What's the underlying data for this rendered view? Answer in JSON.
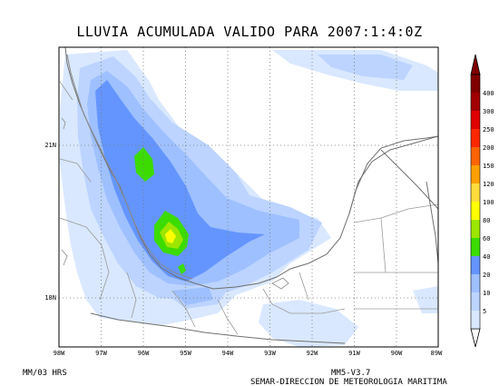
{
  "title": "LLUVIA ACUMULADA VALIDO PARA 2007:1:4:0Z",
  "x_ticks": [
    "98W",
    "97W",
    "96W",
    "95W",
    "94W",
    "93W",
    "92W",
    "91W",
    "90W",
    "89W"
  ],
  "y_ticks": [
    "21N",
    "18N"
  ],
  "footer": {
    "left": "MM/03 HRS",
    "model": "MM5-V3.7",
    "agency": "SEMAR-DIRECCION DE METEOROLOGIA MARITIMA"
  },
  "colorbar": {
    "levels": [
      "5",
      "10",
      "20",
      "40",
      "60",
      "80",
      "100",
      "120",
      "150",
      "200",
      "250",
      "300",
      "400"
    ],
    "colors": [
      "#d9e8ff",
      "#bcd4ff",
      "#9ec0ff",
      "#6495ff",
      "#3cdc00",
      "#9ce600",
      "#ffff00",
      "#ffdc3c",
      "#ffa000",
      "#ff6400",
      "#ff2800",
      "#e00000",
      "#a00000",
      "#800000"
    ]
  },
  "map": {
    "lon_range": [
      -98,
      -89
    ],
    "lat_range": [
      17,
      22.5
    ]
  }
}
